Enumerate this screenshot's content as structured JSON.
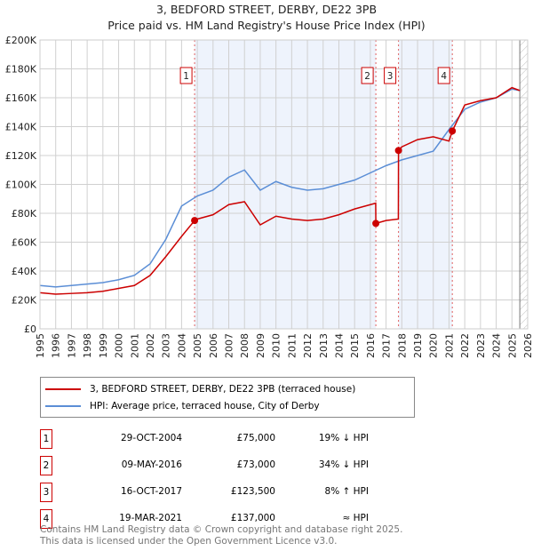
{
  "title": "3, BEDFORD STREET, DERBY, DE22 3PB",
  "subtitle": "Price paid vs. HM Land Registry's House Price Index (HPI)",
  "chart_data": {
    "type": "line",
    "xlim": [
      1995,
      2026
    ],
    "ylim": [
      0,
      200000
    ],
    "yticks": [
      0,
      20000,
      40000,
      60000,
      80000,
      100000,
      120000,
      140000,
      160000,
      180000,
      200000
    ],
    "ytick_labels": [
      "£0",
      "£20K",
      "£40K",
      "£60K",
      "£80K",
      "£100K",
      "£120K",
      "£140K",
      "£160K",
      "£180K",
      "£200K"
    ],
    "xticks": [
      1995,
      1996,
      1997,
      1998,
      1999,
      2000,
      2001,
      2002,
      2003,
      2004,
      2005,
      2006,
      2007,
      2008,
      2009,
      2010,
      2011,
      2012,
      2013,
      2014,
      2015,
      2016,
      2017,
      2018,
      2019,
      2020,
      2021,
      2022,
      2023,
      2024,
      2025,
      2026
    ],
    "series": [
      {
        "name": "3, BEDFORD STREET, DERBY, DE22 3PB (terraced house)",
        "color": "#cc0000",
        "x": [
          1995,
          1996,
          1997,
          1998,
          1999,
          2000,
          2001,
          2002,
          2003,
          2004,
          2004.83,
          2005,
          2006,
          2007,
          2008,
          2009,
          2010,
          2011,
          2012,
          2013,
          2014,
          2015,
          2016.34,
          2016.35,
          2017,
          2017.78,
          2017.79,
          2018,
          2019,
          2020,
          2021,
          2021.21,
          2022,
          2023,
          2024,
          2025,
          2025.5
        ],
        "y": [
          25000,
          24000,
          24500,
          25000,
          26000,
          28000,
          30000,
          37000,
          50000,
          64000,
          75000,
          76000,
          79000,
          86000,
          88000,
          72000,
          78000,
          76000,
          75000,
          76000,
          79000,
          83000,
          87000,
          73000,
          75000,
          76000,
          123500,
          126000,
          131000,
          133000,
          130000,
          137000,
          155000,
          158000,
          160000,
          167000,
          165000
        ]
      },
      {
        "name": "HPI: Average price, terraced house, City of Derby",
        "color": "#5b8ed6",
        "x": [
          1995,
          1996,
          1997,
          1998,
          1999,
          2000,
          2001,
          2002,
          2003,
          2004,
          2005,
          2006,
          2007,
          2008,
          2009,
          2010,
          2011,
          2012,
          2013,
          2014,
          2015,
          2016,
          2017,
          2018,
          2019,
          2020,
          2021,
          2022,
          2023,
          2024,
          2025,
          2025.5
        ],
        "y": [
          30000,
          29000,
          30000,
          31000,
          32000,
          34000,
          37000,
          45000,
          62000,
          85000,
          92000,
          96000,
          105000,
          110000,
          96000,
          102000,
          98000,
          96000,
          97000,
          100000,
          103000,
          108000,
          113000,
          117000,
          120000,
          123000,
          138000,
          152000,
          157000,
          160000,
          166000,
          165000
        ]
      }
    ],
    "sales": [
      {
        "n": "1",
        "x": 2004.83,
        "y": 75000
      },
      {
        "n": "2",
        "x": 2016.35,
        "y": 73000
      },
      {
        "n": "3",
        "x": 2017.79,
        "y": 123500
      },
      {
        "n": "4",
        "x": 2021.21,
        "y": 137000
      }
    ],
    "shaded": [
      [
        2004.83,
        2016.35
      ],
      [
        2017.79,
        2021.21
      ]
    ],
    "hatch_from": 2025.5
  },
  "legend": {
    "red": "3, BEDFORD STREET, DERBY, DE22 3PB (terraced house)",
    "blue": "HPI: Average price, terraced house, City of Derby"
  },
  "sales_table": [
    {
      "n": "1",
      "date": "29-OCT-2004",
      "price": "£75,000",
      "hpi": "19% ↓ HPI"
    },
    {
      "n": "2",
      "date": "09-MAY-2016",
      "price": "£73,000",
      "hpi": "34% ↓ HPI"
    },
    {
      "n": "3",
      "date": "16-OCT-2017",
      "price": "£123,500",
      "hpi": "8% ↑ HPI"
    },
    {
      "n": "4",
      "date": "19-MAR-2021",
      "price": "£137,000",
      "hpi": "≈ HPI"
    }
  ],
  "footer": {
    "line1": "Contains HM Land Registry data © Crown copyright and database right 2025.",
    "line2": "This data is licensed under the Open Government Licence v3.0."
  }
}
